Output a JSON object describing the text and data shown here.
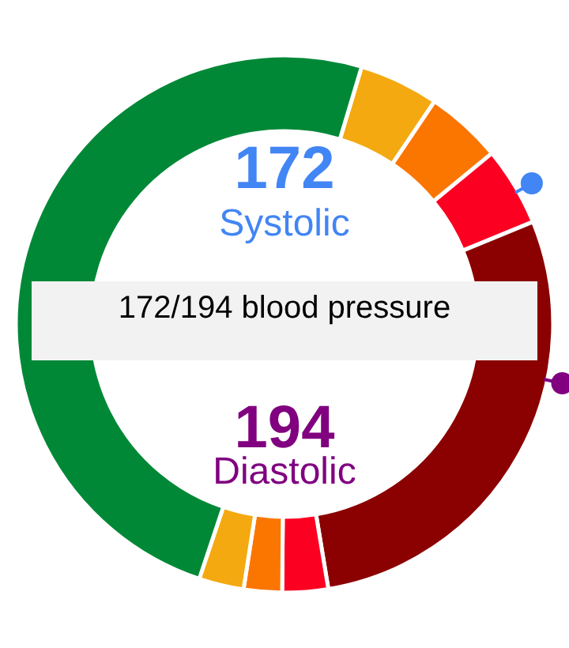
{
  "chart_data": {
    "type": "donut",
    "categories": [
      null,
      null,
      null,
      null,
      null,
      null,
      null,
      null
    ],
    "values": [
      4.8,
      4.6,
      4.75,
      28.6,
      2.75,
      2.3,
      2.7,
      49.5
    ],
    "colors": [
      "#f4a911",
      "#fb7600",
      "#fc0022",
      "#8b0000",
      "#fc0022",
      "#fb7600",
      "#f4a911",
      "#008837"
    ],
    "annotations": [
      "172",
      "Systolic",
      "172/194 blood pressure",
      "194",
      "Diastolic"
    ]
  }
}
